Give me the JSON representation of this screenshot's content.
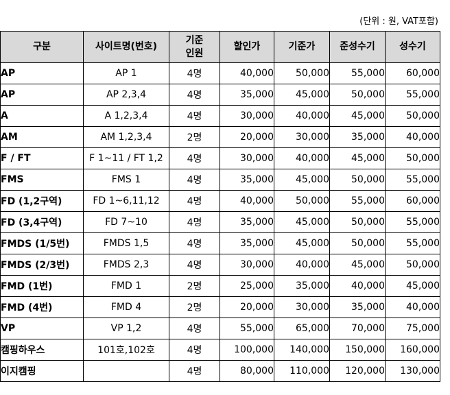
{
  "unit_note": "(단위 : 원, VAT포함)",
  "headers": {
    "type": "구분",
    "site": "사이트명(번호)",
    "capacity_line1": "기준",
    "capacity_line2": "인원",
    "discount": "할인가",
    "standard": "기준가",
    "semi_peak": "준성수기",
    "peak": "성수기"
  },
  "rows": [
    {
      "type": "AP",
      "site": "AP 1",
      "capacity": "4명",
      "discount": "40,000",
      "standard": "50,000",
      "semi_peak": "55,000",
      "peak": "60,000"
    },
    {
      "type": "AP",
      "site": "AP 2,3,4",
      "capacity": "4명",
      "discount": "35,000",
      "standard": "45,000",
      "semi_peak": "50,000",
      "peak": "55,000"
    },
    {
      "type": "A",
      "site": "A 1,2,3,4",
      "capacity": "4명",
      "discount": "30,000",
      "standard": "40,000",
      "semi_peak": "45,000",
      "peak": "50,000"
    },
    {
      "type": "AM",
      "site": "AM 1,2,3,4",
      "capacity": "2명",
      "discount": "20,000",
      "standard": "30,000",
      "semi_peak": "35,000",
      "peak": "40,000"
    },
    {
      "type": "F / FT",
      "site": "F 1~11 / FT 1,2",
      "capacity": "4명",
      "discount": "30,000",
      "standard": "40,000",
      "semi_peak": "45,000",
      "peak": "50,000"
    },
    {
      "type": "FMS",
      "site": "FMS 1",
      "capacity": "4명",
      "discount": "35,000",
      "standard": "45,000",
      "semi_peak": "50,000",
      "peak": "55,000"
    },
    {
      "type": "FD (1,2구역)",
      "site": "FD 1~6,11,12",
      "capacity": "4명",
      "discount": "40,000",
      "standard": "50,000",
      "semi_peak": "55,000",
      "peak": "60,000"
    },
    {
      "type": "FD (3,4구역)",
      "site": "FD 7~10",
      "capacity": "4명",
      "discount": "35,000",
      "standard": "45,000",
      "semi_peak": "50,000",
      "peak": "55,000"
    },
    {
      "type": "FMDS (1/5번)",
      "site": "FMDS 1,5",
      "capacity": "4명",
      "discount": "35,000",
      "standard": "45,000",
      "semi_peak": "50,000",
      "peak": "55,000"
    },
    {
      "type": "FMDS (2/3번)",
      "site": "FMDS 2,3",
      "capacity": "4명",
      "discount": "30,000",
      "standard": "40,000",
      "semi_peak": "45,000",
      "peak": "50,000"
    },
    {
      "type": "FMD (1번)",
      "site": "FMD 1",
      "capacity": "2명",
      "discount": "25,000",
      "standard": "35,000",
      "semi_peak": "40,000",
      "peak": "45,000"
    },
    {
      "type": "FMD (4번)",
      "site": "FMD 4",
      "capacity": "2명",
      "discount": "20,000",
      "standard": "30,000",
      "semi_peak": "35,000",
      "peak": "40,000"
    },
    {
      "type": "VP",
      "site": "VP 1,2",
      "capacity": "4명",
      "discount": "55,000",
      "standard": "65,000",
      "semi_peak": "70,000",
      "peak": "75,000"
    },
    {
      "type": "캠핑하우스",
      "site": "101호,102호",
      "capacity": "4명",
      "discount": "100,000",
      "standard": "140,000",
      "semi_peak": "150,000",
      "peak": "160,000"
    },
    {
      "type": "이지캠핑",
      "site": "",
      "capacity": "4명",
      "discount": "80,000",
      "standard": "110,000",
      "semi_peak": "120,000",
      "peak": "130,000"
    }
  ]
}
